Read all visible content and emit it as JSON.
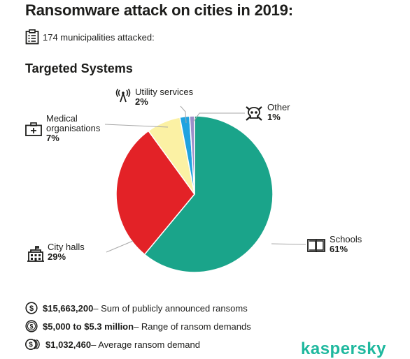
{
  "title": "Ransomware attack on cities in 2019:",
  "municipalities": {
    "text": "174 municipalities attacked:",
    "icon": "document-list-icon"
  },
  "section_title": "Targeted Systems",
  "chart_data": {
    "type": "pie",
    "title": "Targeted Systems",
    "slices": [
      {
        "label": "Schools",
        "value": 61,
        "pct_label": "61%",
        "color": "#1aa48a",
        "icon": "book-icon"
      },
      {
        "label": "City halls",
        "value": 29,
        "pct_label": "29%",
        "color": "#e32227",
        "icon": "building-icon"
      },
      {
        "label": "Medical organisations",
        "value": 7,
        "pct_label": "7%",
        "color": "#fbf1a4",
        "icon": "medical-kit-icon"
      },
      {
        "label": "Utility services",
        "value": 2,
        "pct_label": "2%",
        "color": "#1fa3e0",
        "icon": "antenna-icon"
      },
      {
        "label": "Other",
        "value": 1,
        "pct_label": "1%",
        "color": "#9c8fc9",
        "icon": "skull-icon"
      }
    ],
    "legend": "none"
  },
  "labels": {
    "schools": {
      "name": "Schools",
      "pct": "61%"
    },
    "city_halls": {
      "name": "City halls",
      "pct": "29%"
    },
    "medical": {
      "name_line1": "Medical",
      "name_line2": "organisations",
      "pct": "7%"
    },
    "utility": {
      "name": "Utility services",
      "pct": "2%"
    },
    "other": {
      "name": "Other",
      "pct": "1%"
    }
  },
  "stats": [
    {
      "value": "$15,663,200",
      "text": " – Sum of publicly announced ransoms",
      "icon": "dollar-coin-icon"
    },
    {
      "value": "$5,000 to $5.3 million",
      "text": " – Range of ransom demands",
      "icon": "dollar-coins-icon"
    },
    {
      "value": "$1,032,460",
      "text": " – Average ransom demand",
      "icon": "dollar-coin-stack-icon"
    }
  ],
  "brand": "kaspersky"
}
